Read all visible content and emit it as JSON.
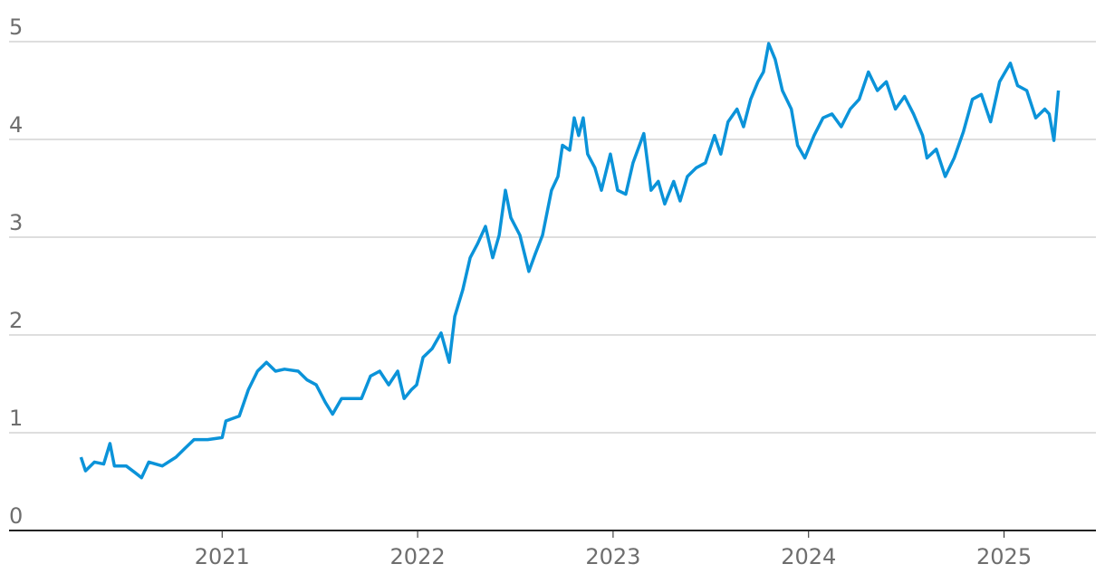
{
  "chart_data": {
    "type": "line",
    "x": [
      2020.278,
      2020.301,
      2020.347,
      2020.394,
      2020.426,
      2020.449,
      2020.509,
      2020.556,
      2020.588,
      2020.625,
      2020.694,
      2020.764,
      2020.81,
      2020.856,
      2020.926,
      2021.0,
      2021.019,
      2021.088,
      2021.134,
      2021.181,
      2021.227,
      2021.273,
      2021.319,
      2021.389,
      2021.435,
      2021.481,
      2021.528,
      2021.565,
      2021.611,
      2021.667,
      2021.713,
      2021.759,
      2021.806,
      2021.852,
      2021.898,
      2021.931,
      2021.968,
      2021.995,
      2022.028,
      2022.074,
      2022.12,
      2022.162,
      2022.19,
      2022.231,
      2022.269,
      2022.306,
      2022.347,
      2022.384,
      2022.417,
      2022.449,
      2022.477,
      2022.523,
      2022.569,
      2022.602,
      2022.639,
      2022.685,
      2022.718,
      2022.741,
      2022.778,
      2022.801,
      2022.824,
      2022.847,
      2022.87,
      2022.907,
      2022.94,
      2022.986,
      2023.023,
      2023.065,
      2023.102,
      2023.157,
      2023.194,
      2023.231,
      2023.264,
      2023.31,
      2023.343,
      2023.38,
      2023.426,
      2023.472,
      2023.519,
      2023.551,
      2023.588,
      2023.634,
      2023.667,
      2023.704,
      2023.741,
      2023.769,
      2023.796,
      2023.829,
      2023.866,
      2023.912,
      2023.944,
      2023.981,
      2024.028,
      2024.074,
      2024.12,
      2024.167,
      2024.213,
      2024.259,
      2024.306,
      2024.352,
      2024.398,
      2024.444,
      2024.491,
      2024.537,
      2024.583,
      2024.606,
      2024.653,
      2024.699,
      2024.745,
      2024.792,
      2024.838,
      2024.884,
      2024.931,
      2024.977,
      2025.032,
      2025.069,
      2025.116,
      2025.162,
      2025.208,
      2025.231,
      2025.255,
      2025.278
    ],
    "series": [
      {
        "color": "#0b93d9",
        "values": [
          0.75,
          0.61,
          0.7,
          0.68,
          0.89,
          0.66,
          0.66,
          0.59,
          0.54,
          0.7,
          0.66,
          0.75,
          0.84,
          0.93,
          0.93,
          0.95,
          1.12,
          1.17,
          1.44,
          1.63,
          1.72,
          1.63,
          1.65,
          1.63,
          1.54,
          1.49,
          1.31,
          1.19,
          1.35,
          1.35,
          1.35,
          1.58,
          1.63,
          1.49,
          1.63,
          1.35,
          1.44,
          1.49,
          1.77,
          1.86,
          2.02,
          1.72,
          2.19,
          2.46,
          2.79,
          2.93,
          3.11,
          2.79,
          3.02,
          3.48,
          3.2,
          3.02,
          2.65,
          2.83,
          3.02,
          3.48,
          3.62,
          3.94,
          3.89,
          4.22,
          4.04,
          4.22,
          3.85,
          3.71,
          3.48,
          3.85,
          3.48,
          3.44,
          3.76,
          4.06,
          3.48,
          3.57,
          3.34,
          3.57,
          3.37,
          3.62,
          3.71,
          3.76,
          4.04,
          3.85,
          4.18,
          4.31,
          4.13,
          4.41,
          4.59,
          4.69,
          4.98,
          4.82,
          4.5,
          4.31,
          3.94,
          3.81,
          4.04,
          4.22,
          4.26,
          4.13,
          4.31,
          4.41,
          4.69,
          4.5,
          4.59,
          4.31,
          4.44,
          4.26,
          4.04,
          3.81,
          3.9,
          3.62,
          3.81,
          4.08,
          4.41,
          4.46,
          4.18,
          4.59,
          4.78,
          4.55,
          4.5,
          4.22,
          4.31,
          4.26,
          3.99,
          4.5
        ]
      }
    ],
    "xlim": [
      2019.91,
      2025.47
    ],
    "xticks": [
      2021,
      2022,
      2023,
      2024,
      2025
    ],
    "ylim": [
      0,
      5
    ],
    "yticks": [
      0,
      1,
      2,
      3,
      4,
      5
    ],
    "grid": true
  }
}
